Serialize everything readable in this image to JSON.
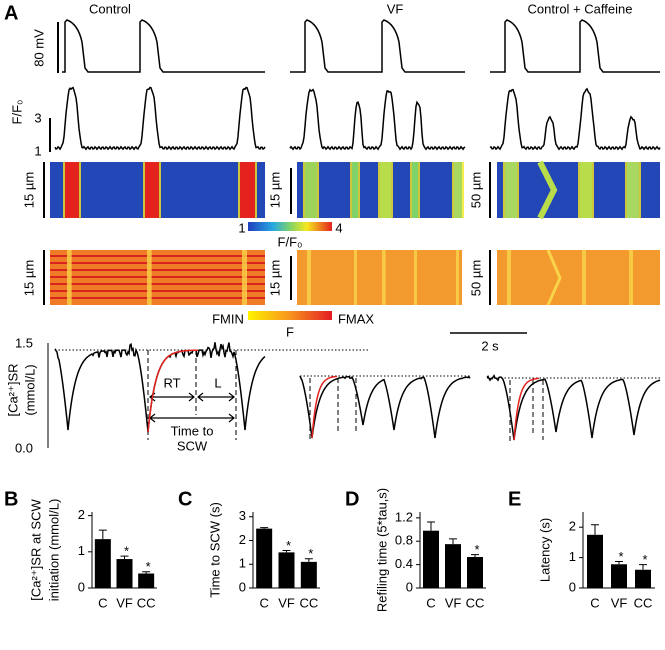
{
  "panel_a": {
    "label": "A",
    "conditions": [
      "Control",
      "VF",
      "Control + Caffeine"
    ],
    "ap_scale": "80 mV",
    "fluo_label": "F/F₀",
    "fluo_ticks": [
      "3",
      "1"
    ],
    "linescan_scales": [
      "15 µm",
      "15 µm",
      "50 µm",
      "15 µm",
      "15 µm",
      "50 µm"
    ],
    "colorbar": {
      "min": "1",
      "max": "4",
      "label": "F/F₀"
    },
    "gradient": {
      "min": "FMIN",
      "label": "F",
      "max": "FMAX"
    },
    "time_scale": "2 s",
    "sr_label": [
      "[Ca²⁺]SR",
      "(mmol/L)"
    ],
    "sr_ticks": [
      "1.5",
      "0.0"
    ],
    "annotations": {
      "rt": "RT",
      "l": "L",
      "time_to_scw": [
        "Time to",
        "SCW"
      ]
    }
  },
  "chart_data": [
    {
      "type": "bar",
      "label": "B",
      "ylabel": [
        "[Ca²⁺]SR at SCW",
        "initiation (mmol/L)"
      ],
      "categories": [
        "C",
        "VF",
        "CC"
      ],
      "values": [
        1.35,
        0.8,
        0.4
      ],
      "errors": [
        0.25,
        0.08,
        0.05
      ],
      "significance": [
        null,
        "*",
        "*"
      ],
      "color": "#000000",
      "ylim": [
        0,
        2.1
      ],
      "yticks": [
        0,
        1,
        2
      ]
    },
    {
      "type": "bar",
      "label": "C",
      "ylabel": "Time to SCW (s)",
      "categories": [
        "C",
        "VF",
        "CC"
      ],
      "values": [
        2.5,
        1.5,
        1.1
      ],
      "errors": [
        0.04,
        0.08,
        0.13
      ],
      "significance": [
        null,
        "*",
        "*"
      ],
      "color": "#000000",
      "ylim": [
        0,
        3.2
      ],
      "yticks": [
        0,
        1,
        2,
        3
      ]
    },
    {
      "type": "bar",
      "label": "D",
      "ylabel": "Refiling time (5*tau,s)",
      "categories": [
        "C",
        "VF",
        "CC"
      ],
      "values": [
        0.98,
        0.75,
        0.53
      ],
      "errors": [
        0.15,
        0.09,
        0.04
      ],
      "significance": [
        null,
        null,
        "*"
      ],
      "color": "#000000",
      "ylim": [
        0,
        1.3
      ],
      "yticks": [
        0,
        0.4,
        0.8,
        1.2
      ]
    },
    {
      "type": "bar",
      "label": "E",
      "ylabel": "Latency (s)",
      "categories": [
        "C",
        "VF",
        "CC"
      ],
      "values": [
        1.75,
        0.78,
        0.6
      ],
      "errors": [
        0.33,
        0.09,
        0.17
      ],
      "significance": [
        null,
        "*",
        "*"
      ],
      "color": "#000000",
      "ylim": [
        0,
        2.5
      ],
      "yticks": [
        0,
        1,
        2
      ]
    }
  ]
}
